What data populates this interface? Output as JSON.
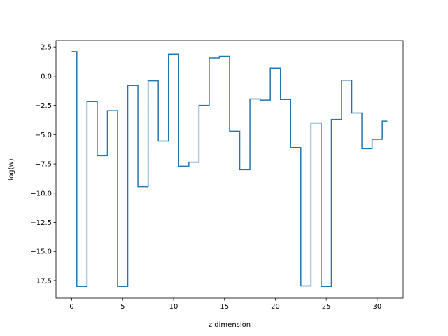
{
  "chart_data": {
    "type": "line",
    "drawstyle": "steps",
    "title": "",
    "xlabel": "z dimension",
    "ylabel": "log(w)",
    "xlim": [
      -1.55,
      32.55
    ],
    "ylim": [
      -19.0,
      3.05
    ],
    "xticks": [
      0,
      5,
      10,
      15,
      20,
      25,
      30
    ],
    "xtick_labels": [
      "0",
      "5",
      "10",
      "15",
      "20",
      "25",
      "30"
    ],
    "yticks": [
      2.5,
      0.0,
      -2.5,
      -5.0,
      -7.5,
      -10.0,
      -12.5,
      -15.0,
      -17.5
    ],
    "ytick_labels": [
      "2.5",
      "0.0",
      "−2.5",
      "−5.0",
      "−7.5",
      "−10.0",
      "−12.5",
      "−15.0",
      "−17.5"
    ],
    "grid": false,
    "color": "#1f77b4",
    "x": [
      0,
      1,
      2,
      3,
      4,
      5,
      6,
      7,
      8,
      9,
      10,
      11,
      12,
      13,
      14,
      15,
      16,
      17,
      18,
      19,
      20,
      21,
      22,
      23,
      24,
      25,
      26,
      27,
      28,
      29,
      30,
      31
    ],
    "y": [
      2.1,
      -18.0,
      -2.15,
      -6.8,
      -2.95,
      -18.0,
      -0.8,
      -9.45,
      -0.4,
      -5.55,
      1.9,
      -7.7,
      -7.35,
      -2.5,
      1.55,
      1.7,
      -4.7,
      -8.0,
      -1.95,
      -2.05,
      0.7,
      -2.0,
      -6.1,
      -17.95,
      -4.0,
      -18.0,
      -3.7,
      -0.35,
      -3.15,
      -6.2,
      -5.4,
      -3.85
    ]
  }
}
